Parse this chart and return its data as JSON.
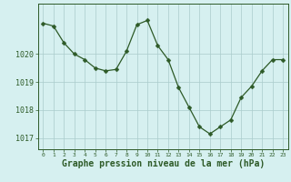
{
  "x": [
    0,
    1,
    2,
    3,
    4,
    5,
    6,
    7,
    8,
    9,
    10,
    11,
    12,
    13,
    14,
    15,
    16,
    17,
    18,
    19,
    20,
    21,
    22,
    23
  ],
  "y": [
    1021.1,
    1021.0,
    1020.4,
    1020.0,
    1019.8,
    1019.5,
    1019.4,
    1019.45,
    1020.1,
    1021.05,
    1021.2,
    1020.3,
    1019.8,
    1018.8,
    1018.1,
    1017.4,
    1017.15,
    1017.4,
    1017.65,
    1018.45,
    1018.85,
    1019.4,
    1019.8,
    1019.8
  ],
  "line_color": "#2d5a27",
  "marker": "D",
  "marker_size": 2.5,
  "bg_color": "#d6f0f0",
  "grid_color": "#aacccc",
  "ylabel_ticks": [
    1017,
    1018,
    1019,
    1020
  ],
  "ylim": [
    1016.6,
    1021.8
  ],
  "xlabel": "Graphe pression niveau de la mer (hPa)",
  "xlabel_fontsize": 7.0
}
